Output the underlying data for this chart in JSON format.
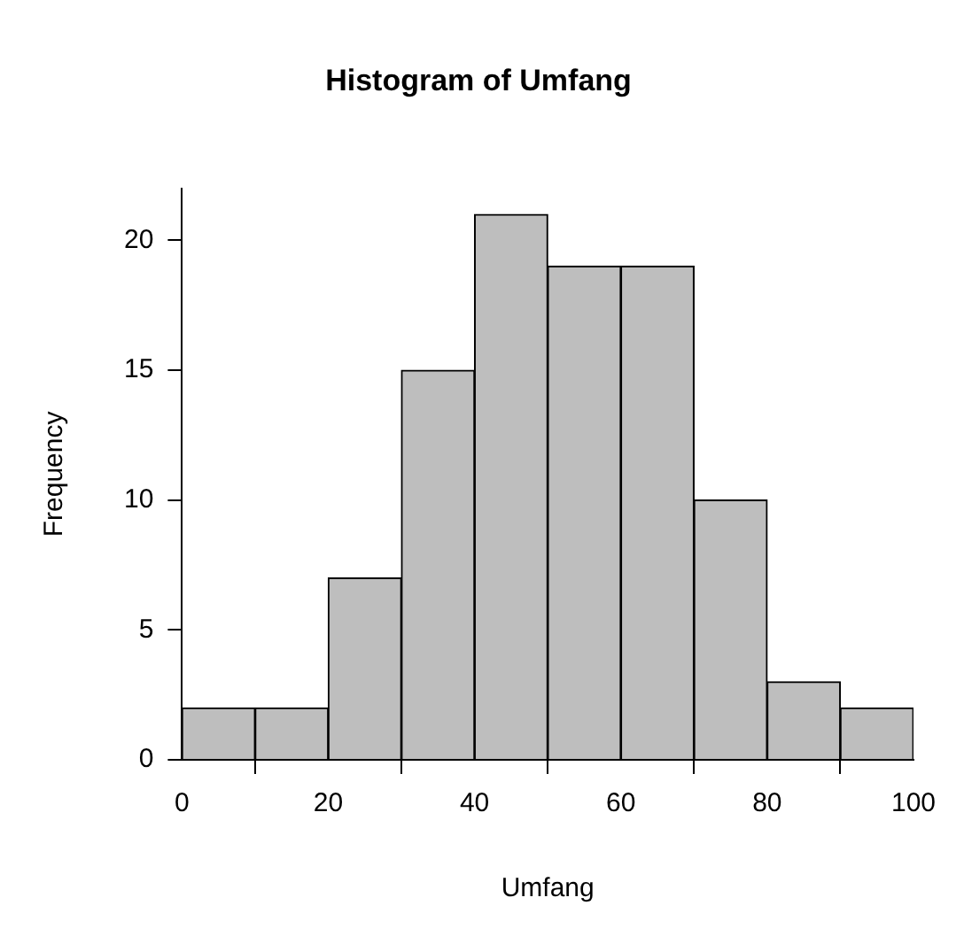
{
  "chart_data": {
    "type": "histogram",
    "title": "Histogram of Umfang",
    "xlabel": "Umfang",
    "ylabel": "Frequency",
    "bins": [
      0,
      10,
      20,
      30,
      40,
      50,
      60,
      70,
      80,
      90,
      100
    ],
    "values": [
      2,
      2,
      7,
      15,
      21,
      19,
      19,
      10,
      3,
      2
    ],
    "color": "#bebebe",
    "xlim": [
      0,
      100
    ],
    "xticks": [
      0,
      20,
      40,
      60,
      80,
      100
    ],
    "ylim": [
      0,
      22
    ],
    "yticks": [
      0,
      5,
      10,
      15,
      20
    ],
    "grid": false,
    "legend": false
  }
}
